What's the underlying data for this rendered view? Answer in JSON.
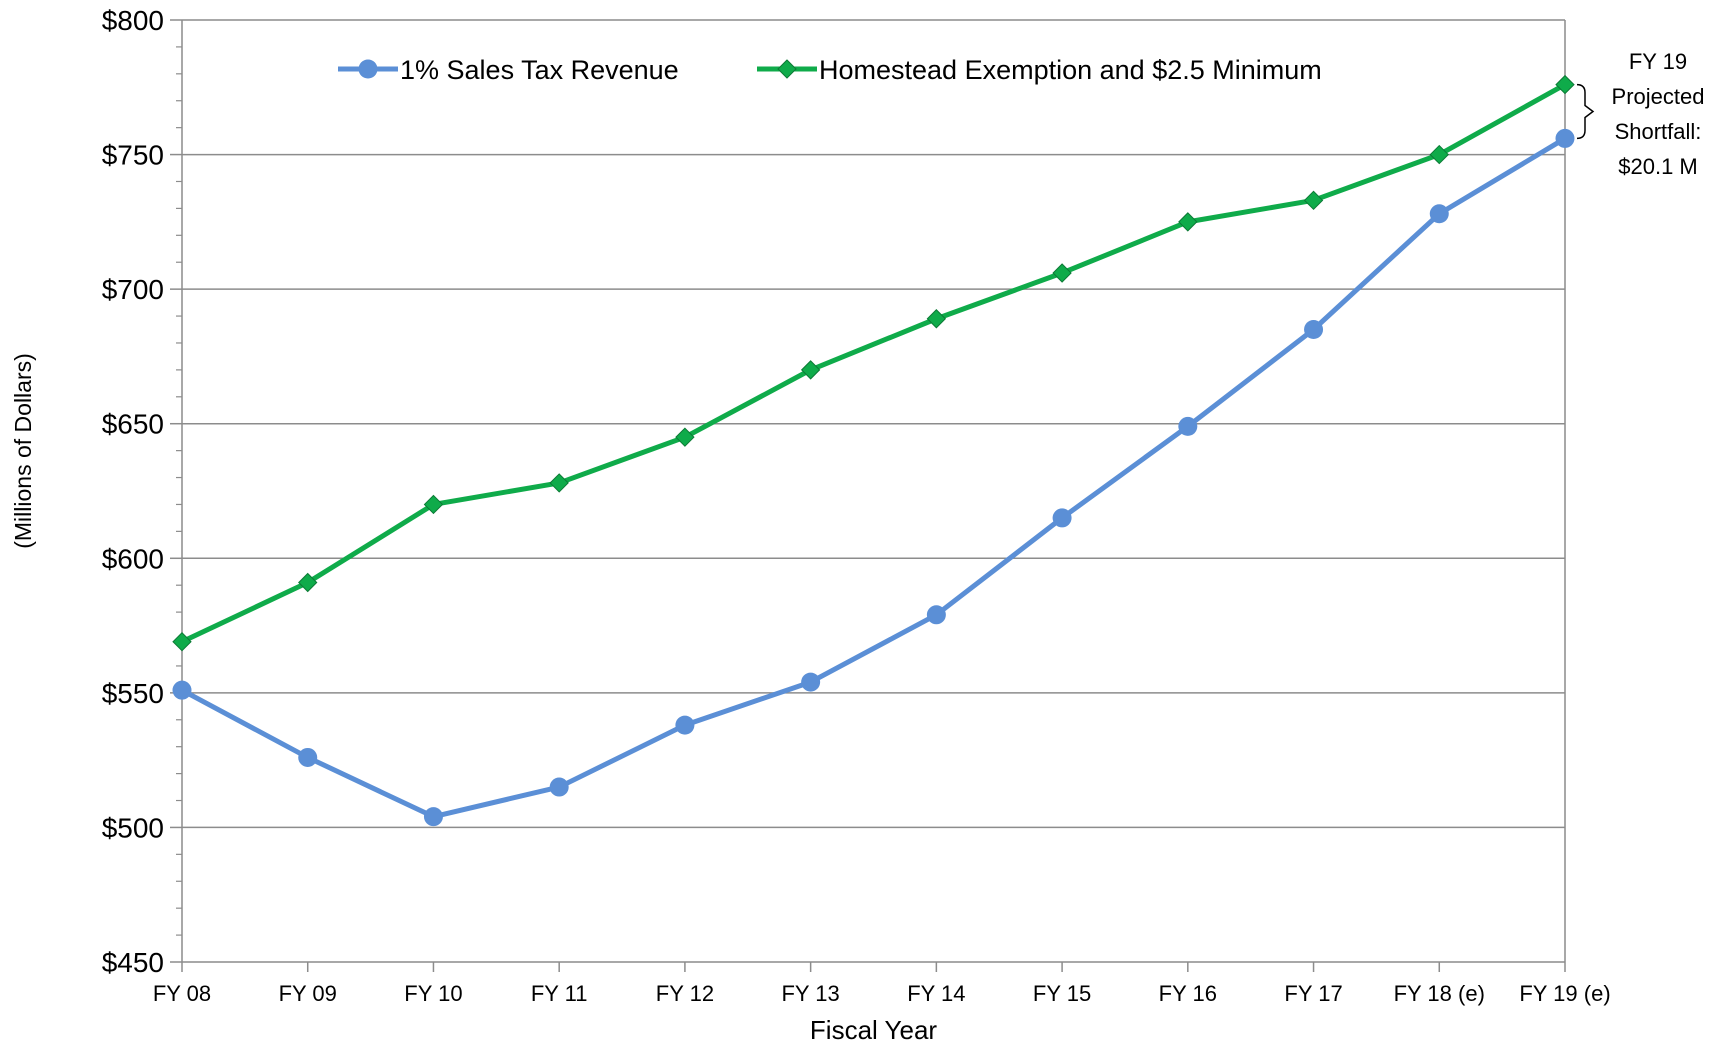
{
  "chart_data": {
    "type": "line",
    "x": [
      "FY 08",
      "FY 09",
      "FY 10",
      "FY 11",
      "FY 12",
      "FY 13",
      "FY 14",
      "FY 15",
      "FY 16",
      "FY 17",
      "FY 18 (e)",
      "FY 19 (e)"
    ],
    "series": [
      {
        "name": "1% Sales Tax Revenue",
        "color": "#5B8FD6",
        "marker": "circle",
        "values": [
          551,
          526,
          504,
          515,
          538,
          554,
          579,
          615,
          649,
          685,
          728,
          756
        ]
      },
      {
        "name": "Homestead Exemption and $2.5 Minimum",
        "color": "#0FAB4A",
        "marker": "diamond",
        "values": [
          569,
          591,
          620,
          628,
          645,
          670,
          689,
          706,
          725,
          733,
          750,
          776
        ]
      }
    ],
    "xlabel": "Fiscal Year",
    "ylabel": "(Millions of Dollars)",
    "ylim": [
      450,
      800
    ],
    "y_major_step": 50,
    "y_minor_step": 10,
    "ytick_labels": [
      "$450",
      "$500",
      "$550",
      "$600",
      "$650",
      "$700",
      "$750",
      "$800"
    ],
    "grid": "horizontal-major",
    "legend_position": "top",
    "annotation": {
      "lines": [
        "FY 19",
        "Projected",
        "Shortfall:",
        "$20.1 M"
      ]
    }
  }
}
